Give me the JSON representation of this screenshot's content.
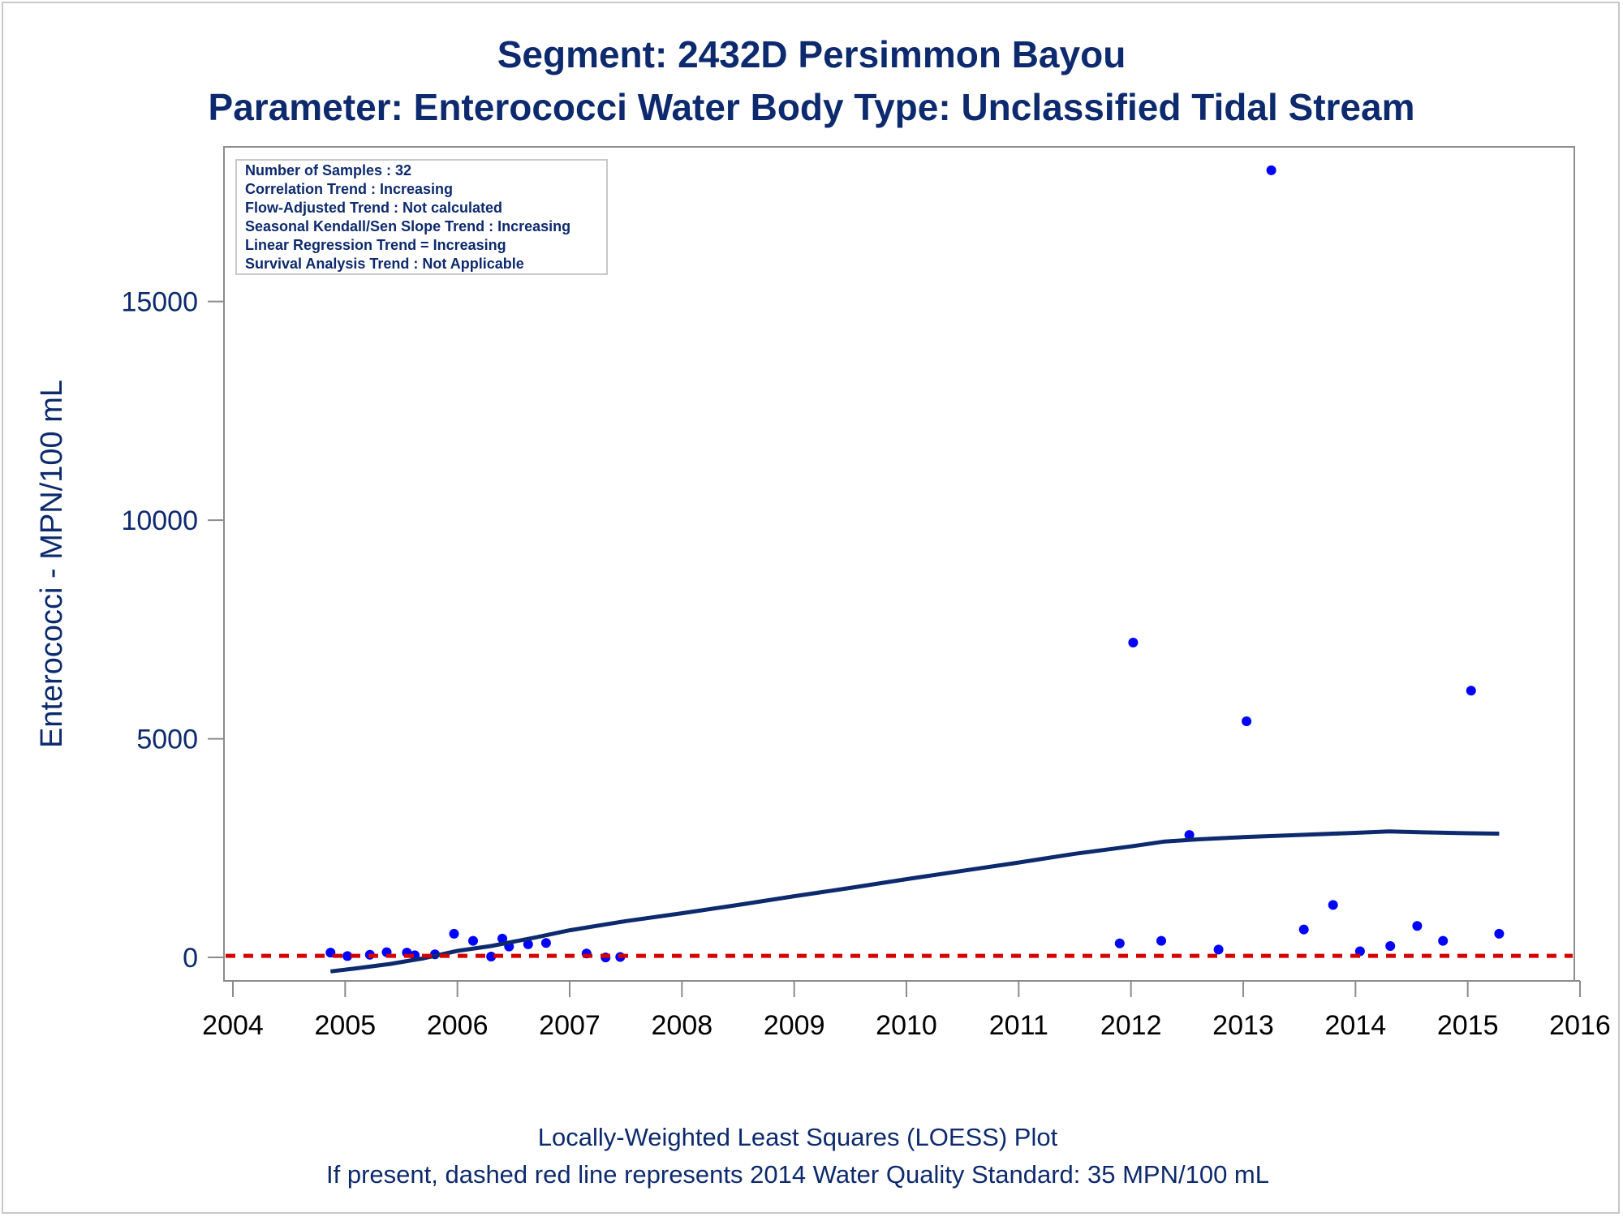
{
  "chart_data": {
    "type": "scatter",
    "title": "Segment: 2432D  Persimmon Bayou",
    "subtitle": "Parameter: Enterococci   Water Body Type: Unclassified Tidal Stream",
    "ylabel": "Enterococci - MPN/100 mL",
    "xlim": [
      2004,
      2016
    ],
    "ylim": [
      -500,
      18500
    ],
    "x_ticks": [
      "2004",
      "2005",
      "2006",
      "2007",
      "2008",
      "2009",
      "2010",
      "2011",
      "2012",
      "2013",
      "2014",
      "2015",
      "2016"
    ],
    "y_ticks": [
      "0",
      "5000",
      "10000",
      "15000"
    ],
    "y_tick_values": [
      0,
      5000,
      10000,
      15000
    ],
    "grid": false,
    "stats_box": {
      "placement": "top-left",
      "lines": [
        "Number of Samples : 32",
        "Correlation Trend : Increasing",
        "Flow-Adjusted Trend : Not calculated",
        "Seasonal Kendall/Sen Slope Trend : Increasing",
        "Linear Regression Trend = Increasing",
        "Survival Analysis Trend : Not Applicable"
      ]
    },
    "series": [
      {
        "type": "scatter",
        "color": "#0000ff",
        "points": [
          {
            "x": 2004.87,
            "y": 110
          },
          {
            "x": 2005.02,
            "y": 30
          },
          {
            "x": 2005.22,
            "y": 60
          },
          {
            "x": 2005.37,
            "y": 120
          },
          {
            "x": 2005.55,
            "y": 110
          },
          {
            "x": 2005.62,
            "y": 50
          },
          {
            "x": 2005.8,
            "y": 70
          },
          {
            "x": 2005.97,
            "y": 540
          },
          {
            "x": 2006.14,
            "y": 380
          },
          {
            "x": 2006.3,
            "y": 20
          },
          {
            "x": 2006.4,
            "y": 430
          },
          {
            "x": 2006.46,
            "y": 250
          },
          {
            "x": 2006.63,
            "y": 300
          },
          {
            "x": 2006.79,
            "y": 330
          },
          {
            "x": 2007.15,
            "y": 90
          },
          {
            "x": 2007.32,
            "y": 0
          },
          {
            "x": 2007.45,
            "y": 10
          },
          {
            "x": 2011.9,
            "y": 320
          },
          {
            "x": 2012.02,
            "y": 7200
          },
          {
            "x": 2012.27,
            "y": 380
          },
          {
            "x": 2012.52,
            "y": 2800
          },
          {
            "x": 2012.78,
            "y": 180
          },
          {
            "x": 2013.03,
            "y": 5400
          },
          {
            "x": 2013.25,
            "y": 18000
          },
          {
            "x": 2013.54,
            "y": 640
          },
          {
            "x": 2013.8,
            "y": 1200
          },
          {
            "x": 2014.04,
            "y": 140
          },
          {
            "x": 2014.31,
            "y": 260
          },
          {
            "x": 2014.55,
            "y": 720
          },
          {
            "x": 2014.78,
            "y": 380
          },
          {
            "x": 2015.03,
            "y": 6100
          },
          {
            "x": 2015.28,
            "y": 540
          }
        ]
      },
      {
        "type": "line",
        "color": "#0d2a6e",
        "points": [
          {
            "x": 2004.87,
            "y": -320
          },
          {
            "x": 2005.1,
            "y": -250
          },
          {
            "x": 2005.4,
            "y": -150
          },
          {
            "x": 2005.7,
            "y": -20
          },
          {
            "x": 2006.0,
            "y": 150
          },
          {
            "x": 2006.3,
            "y": 260
          },
          {
            "x": 2006.7,
            "y": 460
          },
          {
            "x": 2007.0,
            "y": 620
          },
          {
            "x": 2007.5,
            "y": 830
          },
          {
            "x": 2008.0,
            "y": 1010
          },
          {
            "x": 2008.5,
            "y": 1200
          },
          {
            "x": 2009.0,
            "y": 1400
          },
          {
            "x": 2009.5,
            "y": 1590
          },
          {
            "x": 2010.0,
            "y": 1790
          },
          {
            "x": 2010.5,
            "y": 1980
          },
          {
            "x": 2011.0,
            "y": 2170
          },
          {
            "x": 2011.5,
            "y": 2370
          },
          {
            "x": 2012.0,
            "y": 2540
          },
          {
            "x": 2012.3,
            "y": 2650
          },
          {
            "x": 2012.6,
            "y": 2700
          },
          {
            "x": 2013.0,
            "y": 2750
          },
          {
            "x": 2013.5,
            "y": 2800
          },
          {
            "x": 2014.0,
            "y": 2850
          },
          {
            "x": 2014.3,
            "y": 2880
          },
          {
            "x": 2014.6,
            "y": 2860
          },
          {
            "x": 2015.0,
            "y": 2840
          },
          {
            "x": 2015.28,
            "y": 2830
          }
        ]
      },
      {
        "type": "hline",
        "color": "#d40000",
        "dashed": true,
        "y": 35
      }
    ]
  },
  "footer": {
    "line1": "Locally-Weighted Least Squares (LOESS) Plot",
    "line2": "If present, dashed red line represents 2014 Water Quality Standard: 35 MPN/100 mL"
  },
  "colors": {
    "title": "#0d2a6e",
    "points": "#0000ff",
    "loess": "#0d2a6e",
    "standard": "#d40000",
    "axis": "#8c8c8c"
  }
}
